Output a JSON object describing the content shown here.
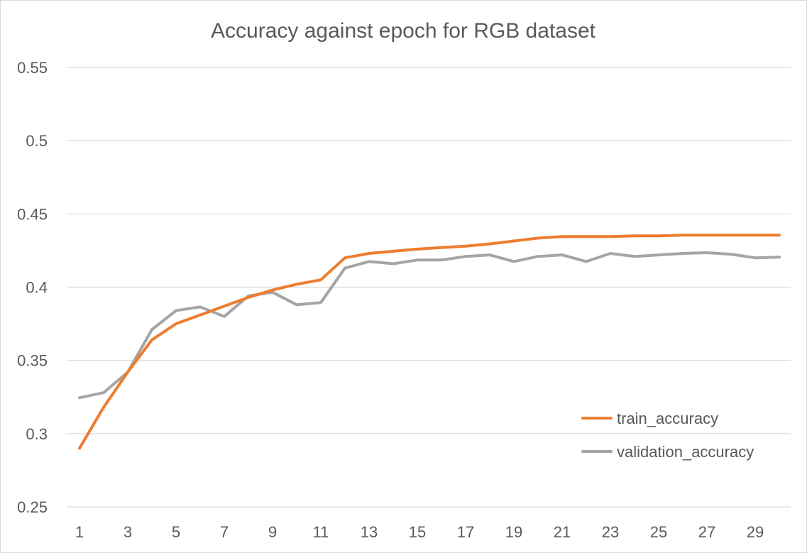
{
  "chart_data": {
    "type": "line",
    "title": "Accuracy against epoch for RGB dataset",
    "xlabel": "",
    "ylabel": "",
    "x": [
      1,
      2,
      3,
      4,
      5,
      6,
      7,
      8,
      9,
      10,
      11,
      12,
      13,
      14,
      15,
      16,
      17,
      18,
      19,
      20,
      21,
      22,
      23,
      24,
      25,
      26,
      27,
      28,
      29,
      30
    ],
    "x_tick_labels": [
      "1",
      "3",
      "5",
      "7",
      "9",
      "11",
      "13",
      "15",
      "17",
      "19",
      "21",
      "23",
      "25",
      "27",
      "29"
    ],
    "ylim": [
      0.25,
      0.55
    ],
    "y_tick_values": [
      0.25,
      0.3,
      0.35,
      0.4,
      0.45,
      0.5,
      0.55
    ],
    "y_tick_labels": [
      "0.25",
      "0.3",
      "0.35",
      "0.4",
      "0.45",
      "0.5",
      "0.55"
    ],
    "grid": true,
    "legend_position": "bottom-right",
    "series": [
      {
        "name": "train_accuracy",
        "color": "#ed7d31",
        "values": [
          0.29,
          0.318,
          0.342,
          0.364,
          0.375,
          0.381,
          0.387,
          0.393,
          0.398,
          0.402,
          0.405,
          0.42,
          0.423,
          0.4245,
          0.426,
          0.427,
          0.428,
          0.4295,
          0.4315,
          0.4335,
          0.4345,
          0.4345,
          0.4345,
          0.435,
          0.435,
          0.4355,
          0.4355,
          0.4355,
          0.4355,
          0.4355
        ]
      },
      {
        "name": "validation_accuracy",
        "color": "#a5a5a5",
        "values": [
          0.3245,
          0.328,
          0.342,
          0.371,
          0.384,
          0.3865,
          0.38,
          0.394,
          0.3965,
          0.388,
          0.3895,
          0.413,
          0.4175,
          0.416,
          0.4185,
          0.4185,
          0.421,
          0.422,
          0.4175,
          0.421,
          0.422,
          0.4175,
          0.423,
          0.421,
          0.422,
          0.423,
          0.4235,
          0.4225,
          0.42,
          0.4205
        ]
      }
    ]
  }
}
